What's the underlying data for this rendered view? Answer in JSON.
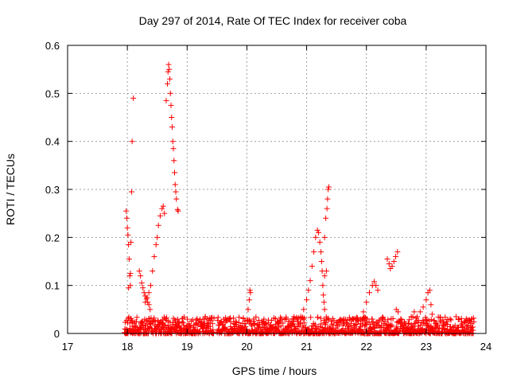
{
  "chart_data": {
    "type": "scatter",
    "title": "Day 297 of 2014, Rate Of TEC Index for receiver coba",
    "xlabel": "GPS time / hours",
    "ylabel": "ROTI / TECUs",
    "xlim": [
      17,
      24
    ],
    "ylim": [
      0,
      0.6
    ],
    "xticks": [
      "17",
      "18",
      "19",
      "20",
      "21",
      "22",
      "23",
      "24"
    ],
    "yticks": [
      "0",
      "0.1",
      "0.2",
      "0.3",
      "0.4",
      "0.5",
      "0.6"
    ],
    "grid": true,
    "marker": "+",
    "color": "#ff0000",
    "series": [
      {
        "name": "ROTI",
        "points": [
          [
            17.98,
            0.255
          ],
          [
            17.99,
            0.24
          ],
          [
            18.0,
            0.22
          ],
          [
            18.01,
            0.205
          ],
          [
            18.02,
            0.185
          ],
          [
            18.03,
            0.155
          ],
          [
            18.04,
            0.12
          ],
          [
            18.05,
            0.1
          ],
          [
            18.06,
            0.19
          ],
          [
            18.07,
            0.295
          ],
          [
            18.08,
            0.4
          ],
          [
            18.1,
            0.49
          ],
          [
            18.05,
            0.125
          ],
          [
            18.02,
            0.095
          ],
          [
            18.2,
            0.13
          ],
          [
            18.22,
            0.12
          ],
          [
            18.24,
            0.105
          ],
          [
            18.26,
            0.095
          ],
          [
            18.28,
            0.085
          ],
          [
            18.3,
            0.078
          ],
          [
            18.32,
            0.072
          ],
          [
            18.34,
            0.065
          ],
          [
            18.36,
            0.06
          ],
          [
            18.38,
            0.05
          ],
          [
            18.3,
            0.065
          ],
          [
            18.33,
            0.075
          ],
          [
            18.36,
            0.085
          ],
          [
            18.39,
            0.1
          ],
          [
            18.42,
            0.13
          ],
          [
            18.45,
            0.16
          ],
          [
            18.48,
            0.185
          ],
          [
            18.5,
            0.2
          ],
          [
            18.52,
            0.225
          ],
          [
            18.55,
            0.245
          ],
          [
            18.58,
            0.26
          ],
          [
            18.6,
            0.265
          ],
          [
            18.62,
            0.25
          ],
          [
            18.65,
            0.485
          ],
          [
            18.67,
            0.52
          ],
          [
            18.68,
            0.545
          ],
          [
            18.69,
            0.56
          ],
          [
            18.7,
            0.55
          ],
          [
            18.71,
            0.53
          ],
          [
            18.72,
            0.5
          ],
          [
            18.73,
            0.475
          ],
          [
            18.74,
            0.45
          ],
          [
            18.75,
            0.43
          ],
          [
            18.76,
            0.4
          ],
          [
            18.77,
            0.385
          ],
          [
            18.78,
            0.36
          ],
          [
            18.79,
            0.335
          ],
          [
            18.8,
            0.31
          ],
          [
            18.81,
            0.295
          ],
          [
            18.82,
            0.28
          ],
          [
            18.84,
            0.258
          ],
          [
            18.85,
            0.255
          ],
          [
            20.02,
            0.05
          ],
          [
            20.04,
            0.07
          ],
          [
            20.06,
            0.085
          ],
          [
            20.05,
            0.09
          ],
          [
            20.8,
            0.015
          ],
          [
            20.85,
            0.025
          ],
          [
            20.9,
            0.035
          ],
          [
            20.95,
            0.05
          ],
          [
            21.0,
            0.07
          ],
          [
            21.03,
            0.09
          ],
          [
            21.06,
            0.11
          ],
          [
            21.09,
            0.14
          ],
          [
            21.12,
            0.17
          ],
          [
            21.15,
            0.2
          ],
          [
            21.18,
            0.215
          ],
          [
            21.2,
            0.21
          ],
          [
            21.22,
            0.19
          ],
          [
            21.24,
            0.17
          ],
          [
            21.25,
            0.15
          ],
          [
            21.26,
            0.13
          ],
          [
            21.27,
            0.1
          ],
          [
            21.28,
            0.08
          ],
          [
            21.29,
            0.065
          ],
          [
            21.3,
            0.05
          ],
          [
            21.3,
            0.2
          ],
          [
            21.32,
            0.24
          ],
          [
            21.34,
            0.26
          ],
          [
            21.35,
            0.28
          ],
          [
            21.36,
            0.3
          ],
          [
            21.37,
            0.305
          ],
          [
            21.33,
            0.13
          ],
          [
            21.3,
            0.12
          ],
          [
            21.9,
            0.03
          ],
          [
            21.95,
            0.045
          ],
          [
            22.0,
            0.065
          ],
          [
            22.05,
            0.085
          ],
          [
            22.1,
            0.1
          ],
          [
            22.13,
            0.108
          ],
          [
            22.16,
            0.1
          ],
          [
            22.19,
            0.09
          ],
          [
            22.35,
            0.155
          ],
          [
            22.38,
            0.145
          ],
          [
            22.4,
            0.135
          ],
          [
            22.43,
            0.14
          ],
          [
            22.46,
            0.15
          ],
          [
            22.49,
            0.16
          ],
          [
            22.52,
            0.17
          ],
          [
            22.5,
            0.05
          ],
          [
            22.53,
            0.045
          ],
          [
            22.7,
            0.02
          ],
          [
            22.75,
            0.035
          ],
          [
            22.8,
            0.045
          ],
          [
            22.85,
            0.035
          ],
          [
            22.9,
            0.045
          ],
          [
            22.95,
            0.055
          ],
          [
            23.0,
            0.07
          ],
          [
            23.03,
            0.085
          ],
          [
            23.06,
            0.09
          ],
          [
            23.08,
            0.06
          ],
          [
            23.1,
            0.04
          ],
          [
            23.3,
            0.02
          ],
          [
            23.4,
            0.03
          ],
          [
            23.5,
            0.035
          ],
          [
            23.55,
            0.03
          ],
          [
            23.6,
            0.02
          ],
          [
            23.7,
            0.015
          ],
          [
            23.75,
            0.012
          ]
        ],
        "baseline": {
          "x_range": [
            17.95,
            23.8
          ],
          "y_range": [
            0.0,
            0.035
          ],
          "density_per_hour": 220
        }
      }
    ]
  }
}
